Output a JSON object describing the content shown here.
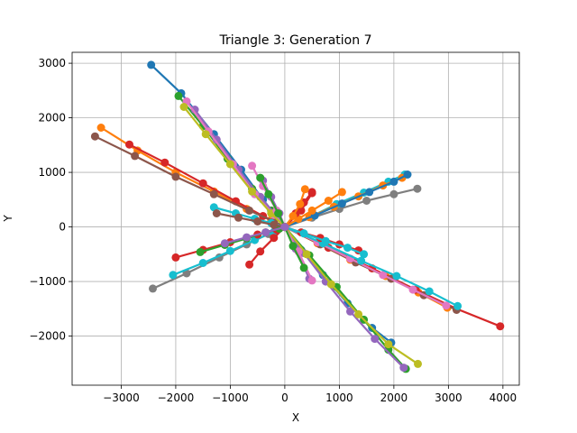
{
  "chart_data": {
    "type": "line",
    "title": "Triangle 3: Generation 7",
    "xlabel": "X",
    "ylabel": "Y",
    "xlim": [
      -3900,
      4300
    ],
    "ylim": [
      -2900,
      3200
    ],
    "xticks": [
      -3000,
      -2000,
      -1000,
      0,
      1000,
      2000,
      3000,
      4000
    ],
    "yticks": [
      -2000,
      -1000,
      0,
      1000,
      2000,
      3000
    ],
    "grid": true,
    "marker": "circle",
    "series": [
      {
        "color": "#1f77b4",
        "x": [
          -2450,
          -1900,
          -1300,
          -800,
          -400,
          0
        ],
        "y": [
          2970,
          2450,
          1700,
          1050,
          500,
          0
        ]
      },
      {
        "color": "#ff7f0e",
        "x": [
          -3370,
          -2700,
          -2000,
          -1300,
          -700,
          -250,
          0
        ],
        "y": [
          1820,
          1400,
          1000,
          650,
          330,
          130,
          0
        ]
      },
      {
        "color": "#2ca02c",
        "x": [
          -1950,
          -1500,
          -1050,
          -600,
          -250,
          0
        ],
        "y": [
          2400,
          1850,
          1250,
          700,
          300,
          0
        ]
      },
      {
        "color": "#d62728",
        "x": [
          -2850,
          -2200,
          -1500,
          -900,
          -400,
          0
        ],
        "y": [
          1510,
          1180,
          800,
          470,
          200,
          0
        ]
      },
      {
        "color": "#9467bd",
        "x": [
          -1650,
          -1250,
          -850,
          -450,
          -150,
          0
        ],
        "y": [
          2150,
          1600,
          1050,
          550,
          200,
          0
        ]
      },
      {
        "color": "#8c564b",
        "x": [
          -3480,
          -2750,
          -2000,
          -1300,
          -650,
          -200,
          0
        ],
        "y": [
          1660,
          1300,
          920,
          600,
          300,
          100,
          0
        ]
      },
      {
        "color": "#e377c2",
        "x": [
          -1800,
          -1400,
          -950,
          -550,
          -200,
          0
        ],
        "y": [
          2300,
          1750,
          1150,
          600,
          220,
          0
        ]
      },
      {
        "color": "#7f7f7f",
        "x": [
          -2420,
          -1800,
          -1200,
          -700,
          -300,
          0
        ],
        "y": [
          -1130,
          -850,
          -560,
          -320,
          -130,
          0
        ]
      },
      {
        "color": "#bcbd22",
        "x": [
          -1850,
          -1450,
          -1000,
          -600,
          -250,
          0
        ],
        "y": [
          2200,
          1700,
          1150,
          650,
          250,
          0
        ]
      },
      {
        "color": "#17becf",
        "x": [
          -2050,
          -1500,
          -1000,
          -550,
          -200,
          0
        ],
        "y": [
          -880,
          -660,
          -440,
          -240,
          -90,
          0
        ]
      },
      {
        "color": "#1f77b4",
        "x": [
          0,
          300,
          700,
          1150,
          1600,
          1950
        ],
        "y": [
          0,
          -420,
          -880,
          -1400,
          -1850,
          -2120
        ]
      },
      {
        "color": "#ff7f0e",
        "x": [
          0,
          600,
          1200,
          1850,
          2450,
          2980
        ],
        "y": [
          0,
          -300,
          -600,
          -900,
          -1200,
          -1480
        ]
      },
      {
        "color": "#2ca02c",
        "x": [
          0,
          450,
          950,
          1450,
          1900,
          2220
        ],
        "y": [
          0,
          -520,
          -1100,
          -1700,
          -2250,
          -2600
        ]
      },
      {
        "color": "#d62728",
        "x": [
          0,
          800,
          1600,
          2400,
          3150,
          3950
        ],
        "y": [
          0,
          -380,
          -760,
          -1150,
          -1500,
          -1820
        ]
      },
      {
        "color": "#9467bd",
        "x": [
          0,
          350,
          750,
          1200,
          1650,
          2180
        ],
        "y": [
          0,
          -480,
          -1000,
          -1550,
          -2050,
          -2580
        ]
      },
      {
        "color": "#8c564b",
        "x": [
          0,
          650,
          1300,
          1950,
          2550,
          3150
        ],
        "y": [
          0,
          -320,
          -650,
          -950,
          -1250,
          -1520
        ]
      },
      {
        "color": "#e377c2",
        "x": [
          0,
          600,
          1200,
          1800,
          2350,
          2960
        ],
        "y": [
          0,
          -280,
          -580,
          -880,
          -1150,
          -1440
        ]
      },
      {
        "color": "#7f7f7f",
        "x": [
          0,
          500,
          1000,
          1500,
          2000,
          2430
        ],
        "y": [
          0,
          170,
          330,
          480,
          600,
          700
        ]
      },
      {
        "color": "#bcbd22",
        "x": [
          0,
          400,
          850,
          1350,
          1900,
          2440
        ],
        "y": [
          0,
          -500,
          -1050,
          -1600,
          -2150,
          -2510
        ]
      },
      {
        "color": "#17becf",
        "x": [
          0,
          700,
          1400,
          2050,
          2650,
          3170
        ],
        "y": [
          0,
          -300,
          -620,
          -900,
          -1180,
          -1450
        ]
      },
      {
        "color": "#17becf",
        "x": [
          0,
          500,
          950,
          1450,
          1900,
          2200
        ],
        "y": [
          0,
          200,
          420,
          630,
          830,
          960
        ]
      },
      {
        "color": "#ff7f0e",
        "x": [
          0,
          450,
          900,
          1350,
          1800,
          2150
        ],
        "y": [
          0,
          180,
          370,
          560,
          760,
          900
        ]
      },
      {
        "color": "#1f77b4",
        "x": [
          0,
          550,
          1050,
          1550,
          2000,
          2250
        ],
        "y": [
          0,
          210,
          430,
          640,
          830,
          960
        ]
      },
      {
        "color": "#d62728",
        "x": [
          -650,
          -450,
          -200,
          0,
          300,
          500
        ],
        "y": [
          -690,
          -450,
          -200,
          0,
          300,
          620
        ]
      },
      {
        "color": "#d62728",
        "x": [
          -2000,
          -1500,
          -1000,
          -500,
          -150,
          0
        ],
        "y": [
          -560,
          -420,
          -280,
          -140,
          -50,
          0
        ]
      },
      {
        "color": "#2ca02c",
        "x": [
          -1550,
          -1100,
          -700,
          -350,
          -100,
          0
        ],
        "y": [
          -460,
          -330,
          -210,
          -100,
          -30,
          0
        ]
      },
      {
        "color": "#9467bd",
        "x": [
          -400,
          -250,
          -100,
          0,
          200,
          450
        ],
        "y": [
          850,
          550,
          250,
          0,
          -400,
          -950
        ]
      },
      {
        "color": "#e377c2",
        "x": [
          -600,
          -400,
          -150,
          0,
          250,
          500
        ],
        "y": [
          1120,
          750,
          300,
          0,
          -450,
          -980
        ]
      },
      {
        "color": "#2ca02c",
        "x": [
          -450,
          -300,
          -120,
          0,
          150,
          350
        ],
        "y": [
          900,
          600,
          250,
          0,
          -350,
          -750
        ]
      },
      {
        "color": "#17becf",
        "x": [
          -1300,
          -900,
          -550,
          -250,
          0
        ],
        "y": [
          360,
          250,
          150,
          70,
          0
        ]
      },
      {
        "color": "#8c564b",
        "x": [
          -1250,
          -850,
          -500,
          -200,
          0
        ],
        "y": [
          250,
          170,
          100,
          40,
          0
        ]
      },
      {
        "color": "#ff7f0e",
        "x": [
          0,
          250,
          500,
          800,
          1050
        ],
        "y": [
          0,
          150,
          300,
          480,
          640
        ]
      },
      {
        "color": "#d62728",
        "x": [
          0,
          300,
          650,
          1000,
          1350
        ],
        "y": [
          0,
          -100,
          -200,
          -320,
          -430
        ]
      },
      {
        "color": "#17becf",
        "x": [
          0,
          350,
          750,
          1150,
          1450
        ],
        "y": [
          0,
          -120,
          -260,
          -380,
          -500
        ]
      },
      {
        "color": "#d62728",
        "x": [
          0,
          200,
          350,
          500
        ],
        "y": [
          0,
          250,
          450,
          640
        ]
      },
      {
        "color": "#ff7f0e",
        "x": [
          0,
          150,
          280,
          370
        ],
        "y": [
          0,
          200,
          420,
          690
        ]
      },
      {
        "color": "#9467bd",
        "x": [
          -1100,
          -700,
          -350,
          0
        ],
        "y": [
          -300,
          -190,
          -100,
          0
        ]
      }
    ]
  }
}
